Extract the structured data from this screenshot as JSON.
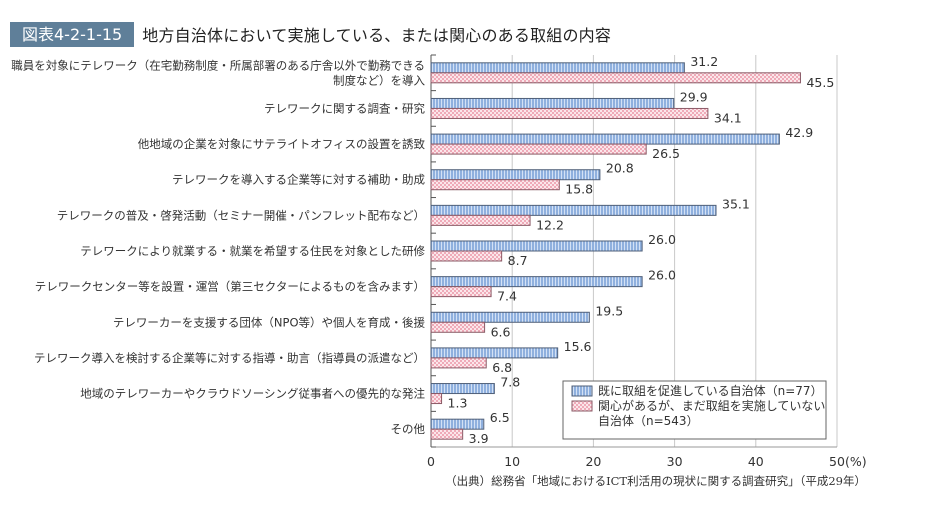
{
  "figure": {
    "badge": "図表4-2-1-15",
    "title": "地方自治体において実施している、または関心のある取組の内容",
    "source": "（出典）総務省「地域におけるICT利活用の現状に関する調査研究」（平成29年）"
  },
  "colors": {
    "series1_fill": "#8fb0de",
    "series1_stripe": "#c9daf2",
    "series1_border": "#4f5f78",
    "series2_fill": "#f2b9c4",
    "series2_border": "#8a5a66",
    "badge_bg": "#5f7f99",
    "grid": "#c8c8c8"
  },
  "chart_data": {
    "type": "bar",
    "orientation": "horizontal",
    "title": "地方自治体において実施している、または関心のある取組の内容",
    "xlabel": "(%)",
    "ylabel": "",
    "xlim": [
      0,
      50
    ],
    "xticks": [
      "0",
      "10",
      "20",
      "30",
      "40",
      "50"
    ],
    "x_unit_label": "(%)",
    "grid": true,
    "legend_position": "bottom-right",
    "categories": [
      [
        "職員を対象にテレワーク（在宅勤務制度・所属部署のある庁舎以外で勤務できる",
        "制度など）を導入"
      ],
      [
        "テレワークに関する調査・研究"
      ],
      [
        "他地域の企業を対象にサテライトオフィスの設置を誘致"
      ],
      [
        "テレワークを導入する企業等に対する補助・助成"
      ],
      [
        "テレワークの普及・啓発活動（セミナー開催・パンフレット配布など）"
      ],
      [
        "テレワークにより就業する・就業を希望する住民を対象とした研修"
      ],
      [
        "テレワークセンター等を設置・運営（第三セクターによるものを含みます）"
      ],
      [
        "テレワーカーを支援する団体（NPO等）や個人を育成・後援"
      ],
      [
        "テレワーク導入を検討する企業等に対する指導・助言（指導員の派遣など）"
      ],
      [
        "地域のテレワーカーやクラウドソーシング従事者への優先的な発注"
      ],
      [
        "その他"
      ]
    ],
    "series": [
      {
        "name": "既に取組を促進している自治体（n=77）",
        "legend_lines": [
          "既に取組を促進している自治体（n=77）"
        ],
        "values": [
          31.2,
          29.9,
          42.9,
          20.8,
          35.1,
          26.0,
          26.0,
          19.5,
          15.6,
          7.8,
          6.5
        ],
        "labels": [
          "31.2",
          "29.9",
          "42.9",
          "20.8",
          "35.1",
          "26.0",
          "26.0",
          "19.5",
          "15.6",
          "7.8",
          "6.5"
        ]
      },
      {
        "name": "関心があるが、まだ取組を実施していない自治体（n=543）",
        "legend_lines": [
          "関心があるが、まだ取組を実施していない",
          "自治体（n=543）"
        ],
        "values": [
          45.5,
          34.1,
          26.5,
          15.8,
          12.2,
          8.7,
          7.4,
          6.6,
          6.8,
          1.3,
          3.9
        ],
        "labels": [
          "45.5",
          "34.1",
          "26.5",
          "15.8",
          "12.2",
          "8.7",
          "7.4",
          "6.6",
          "6.8",
          "1.3",
          "3.9"
        ]
      }
    ]
  }
}
